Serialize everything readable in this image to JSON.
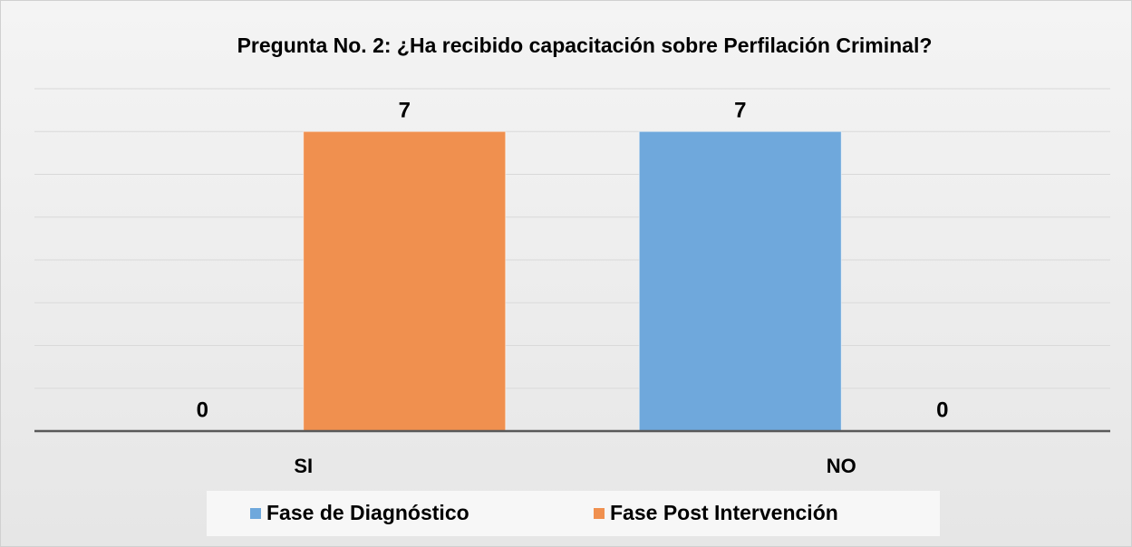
{
  "chart_data": {
    "type": "bar",
    "title": "Pregunta No. 2: ¿Ha recibido capacitación sobre Perfilación Criminal?",
    "categories": [
      "SI",
      "NO"
    ],
    "series": [
      {
        "name": "Fase de Diagnóstico",
        "color": "#6fa8dc",
        "values": [
          0,
          7
        ]
      },
      {
        "name": "Fase Post Intervención",
        "color": "#f0904f",
        "values": [
          7,
          0
        ]
      }
    ],
    "ylim": [
      0,
      8
    ],
    "yticks": [
      0,
      1,
      2,
      3,
      4,
      5,
      6,
      7,
      8
    ],
    "grid": true,
    "legend": "bottom"
  }
}
